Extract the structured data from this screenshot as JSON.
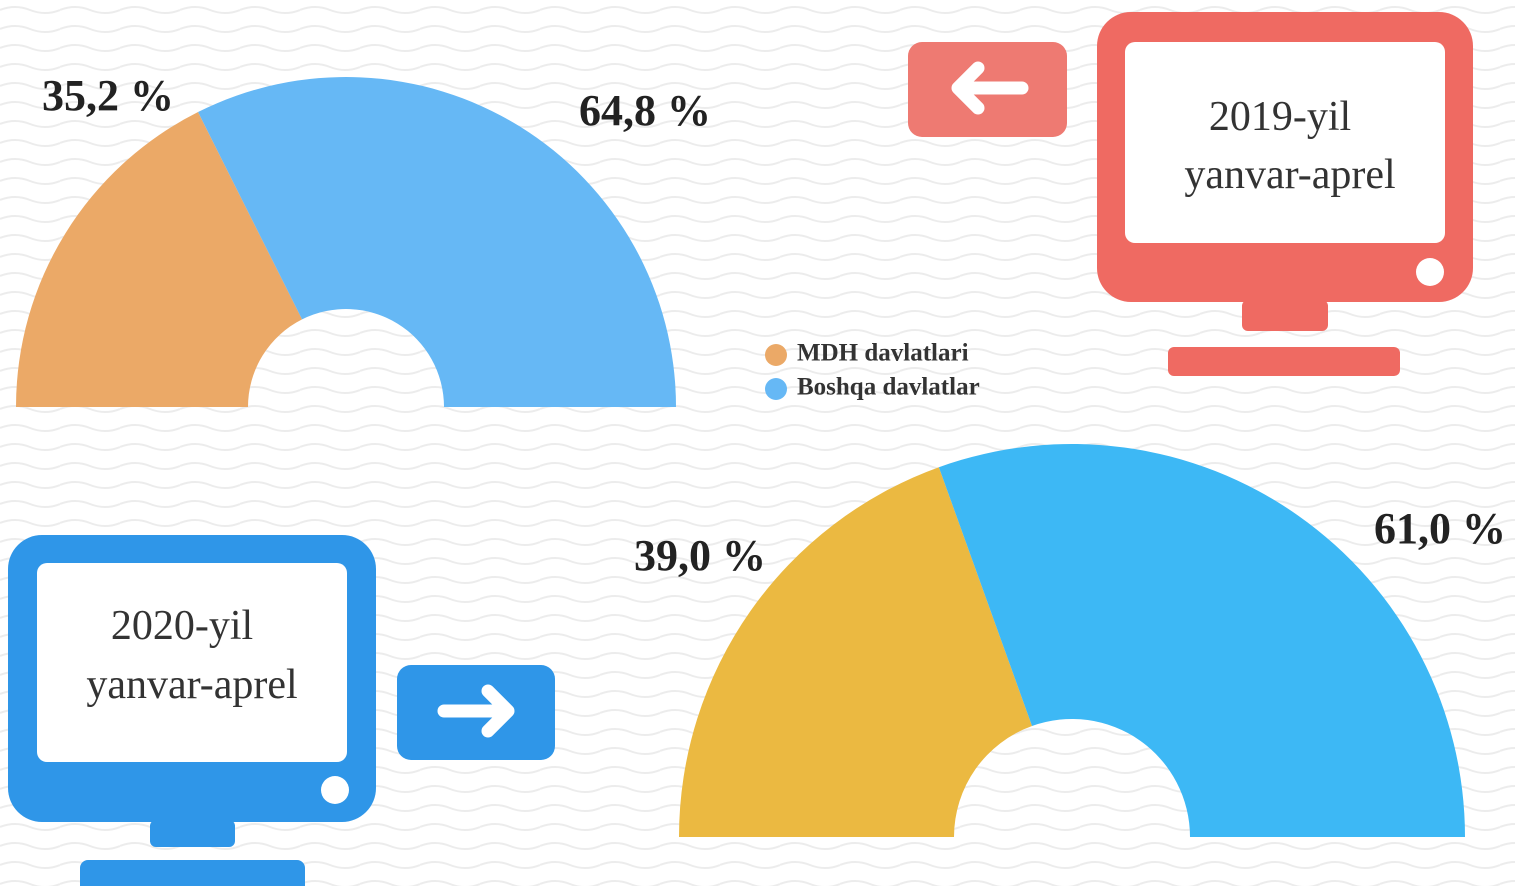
{
  "chart_data": [
    {
      "type": "pie",
      "half": true,
      "title": "2019-yil",
      "subtitle": "yanvar-aprel",
      "categories": [
        "MDH davlatlari",
        "Boshqa davlatlar"
      ],
      "values": [
        35.2,
        64.8
      ],
      "value_labels": [
        "35,2 %",
        "64,8 %"
      ],
      "colors": [
        "#eba967",
        "#66b8f5"
      ],
      "legend": true
    },
    {
      "type": "pie",
      "half": true,
      "title": "2020-yil",
      "subtitle": "yanvar-aprel",
      "categories": [
        "MDH davlatlari",
        "Boshqa davlatlar"
      ],
      "values": [
        39.0,
        61.0
      ],
      "value_labels": [
        "39,0 %",
        "61,0 %"
      ],
      "colors": [
        "#ebb941",
        "#3db8f5"
      ],
      "legend": false
    }
  ]
}
